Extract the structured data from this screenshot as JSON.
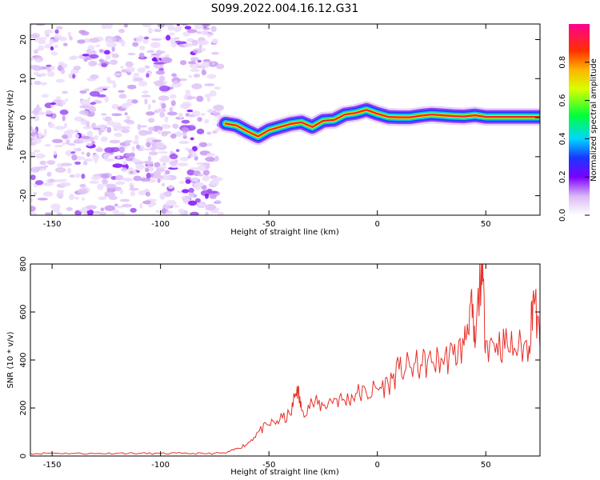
{
  "figure": {
    "title": "S099.2022.004.16.12.G31"
  },
  "chart_data": [
    {
      "type": "heatmap",
      "xlabel": "Height of straight line (km)",
      "ylabel": "Frequency (Hz)",
      "xlim": [
        -160,
        75
      ],
      "ylim": [
        -25,
        24
      ],
      "xticks": [
        -150,
        -100,
        -50,
        0,
        50
      ],
      "yticks": [
        -20,
        -10,
        0,
        10,
        20
      ],
      "noise_region_x": [
        -160,
        -70
      ],
      "signal_ridge": {
        "x": [
          -70,
          -65,
          -60,
          -55,
          -50,
          -45,
          -40,
          -35,
          -30,
          -25,
          -20,
          -15,
          -10,
          -5,
          0,
          5,
          10,
          15,
          20,
          25,
          30,
          35,
          40,
          45,
          50,
          55,
          60,
          65,
          70,
          75
        ],
        "y": [
          -1.5,
          -2.0,
          -3.5,
          -4.8,
          -3.2,
          -2.4,
          -1.6,
          -1.2,
          -2.4,
          -0.8,
          -0.6,
          0.8,
          1.2,
          2.0,
          1.0,
          0.2,
          0.1,
          0.1,
          0.5,
          0.8,
          0.6,
          0.4,
          0.3,
          0.6,
          0.2,
          0.2,
          0.2,
          0.2,
          0.2,
          0.2
        ]
      },
      "colorbar": {
        "label": "Normalized spectral amplitude",
        "ticks": [
          0.0,
          0.2,
          0.4,
          0.6,
          0.8
        ],
        "tick_labels": [
          "0.0",
          "0.2",
          "0.4",
          "0.6",
          "0.8"
        ],
        "range": [
          0,
          1
        ]
      },
      "grid": false
    },
    {
      "type": "line",
      "xlabel": "Height of straight line (km)",
      "ylabel": "SNR (10 * v/v)",
      "xlim": [
        -160,
        75
      ],
      "ylim": [
        0,
        800
      ],
      "xticks": [
        -150,
        -100,
        -50,
        0,
        50
      ],
      "yticks": [
        0,
        200,
        400,
        600,
        800
      ],
      "series": [
        {
          "color": "#e8302a",
          "x": [
            -160,
            -150,
            -140,
            -130,
            -120,
            -110,
            -100,
            -90,
            -80,
            -70,
            -65,
            -60,
            -55,
            -50,
            -45,
            -40,
            -37,
            -35,
            -30,
            -25,
            -20,
            -15,
            -10,
            -5,
            0,
            5,
            10,
            15,
            20,
            25,
            30,
            35,
            40,
            43,
            45,
            48,
            50,
            55,
            60,
            65,
            70,
            72,
            75
          ],
          "y": [
            10,
            12,
            11,
            10,
            12,
            11,
            10,
            11,
            10,
            12,
            30,
            50,
            100,
            130,
            150,
            170,
            290,
            190,
            220,
            210,
            240,
            230,
            260,
            260,
            280,
            300,
            360,
            370,
            380,
            390,
            400,
            420,
            460,
            640,
            450,
            800,
            480,
            470,
            460,
            450,
            460,
            690,
            450
          ]
        }
      ],
      "grid": false
    }
  ]
}
